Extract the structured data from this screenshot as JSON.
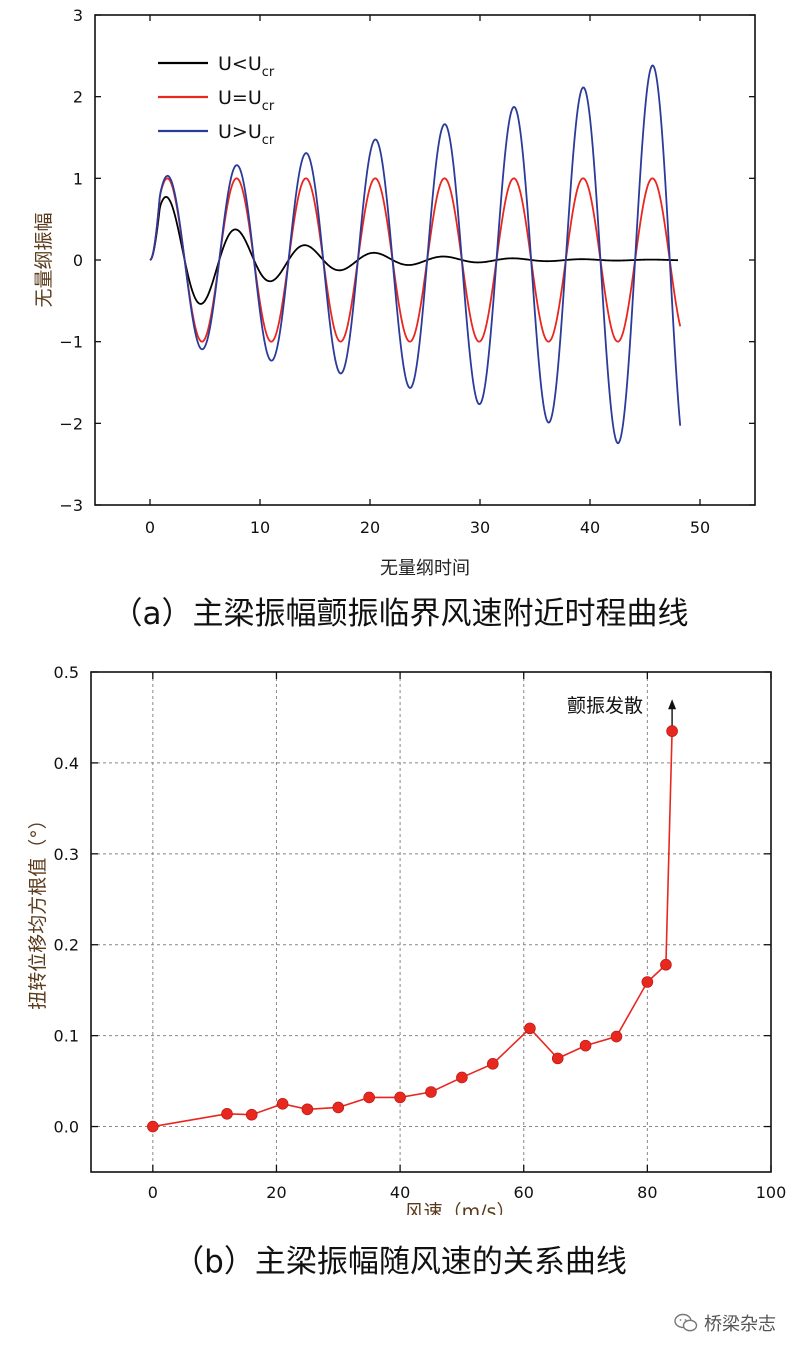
{
  "captions": {
    "a": "（a）主梁振幅颤振临界风速附近时程曲线",
    "b": "（b）主梁振幅随风速的关系曲线"
  },
  "watermark": "桥梁杂志",
  "chart_data": [
    {
      "type": "line",
      "xlabel": "无量纲时间",
      "ylabel": "无量纲振幅",
      "xlim": [
        -5,
        55
      ],
      "ylim": [
        -3,
        3
      ],
      "xticks": [
        0,
        10,
        20,
        30,
        40,
        50
      ],
      "yticks": [
        -3,
        -2,
        -1,
        0,
        1,
        2,
        3
      ],
      "grid": false,
      "legend_position": "top-left",
      "legend": [
        {
          "main": "U<U",
          "sub": "cr",
          "color": "#000000"
        },
        {
          "main": "U=U",
          "sub": "cr",
          "color": "#e8271f"
        },
        {
          "main": "U>U",
          "sub": "cr",
          "color": "#2b3b9a"
        }
      ],
      "series": [
        {
          "name": "U<Ucr",
          "color": "#000000",
          "t_end": 48,
          "period": 6.3,
          "amp_start": 0.92,
          "decay_rate": -0.115,
          "phase": -0.3
        },
        {
          "name": "U=Ucr",
          "color": "#e8271f",
          "t_end": 48.2,
          "period": 6.3,
          "amp_start": 1.0,
          "decay_rate": 0.0,
          "phase": -0.3
        },
        {
          "name": "U>Ucr",
          "color": "#2b3b9a",
          "t_end": 48.2,
          "period": 6.3,
          "amp_start": 1.0,
          "decay_rate": 0.019,
          "phase": -0.3
        }
      ]
    },
    {
      "type": "line",
      "xlabel": "风速（m/s）",
      "ylabel": "扭转位移均方根值（°）",
      "xlim": [
        -10,
        100
      ],
      "ylim": [
        -0.05,
        0.5
      ],
      "xticks": [
        0,
        20,
        40,
        60,
        80,
        100
      ],
      "yticks": [
        "0.0",
        "0.1",
        "0.2",
        "0.3",
        "0.4",
        "0.5"
      ],
      "grid": true,
      "color": "#e8271f",
      "annotation": "颤振发散",
      "x": [
        0,
        12,
        16,
        21,
        25,
        30,
        35,
        40,
        45,
        50,
        55,
        61,
        65.5,
        70,
        75,
        80,
        83,
        84
      ],
      "y": [
        0.0,
        0.014,
        0.013,
        0.025,
        0.019,
        0.021,
        0.032,
        0.032,
        0.038,
        0.054,
        0.069,
        0.108,
        0.075,
        0.089,
        0.099,
        0.159,
        0.178,
        0.435
      ],
      "arrow_to": 0.47
    }
  ]
}
